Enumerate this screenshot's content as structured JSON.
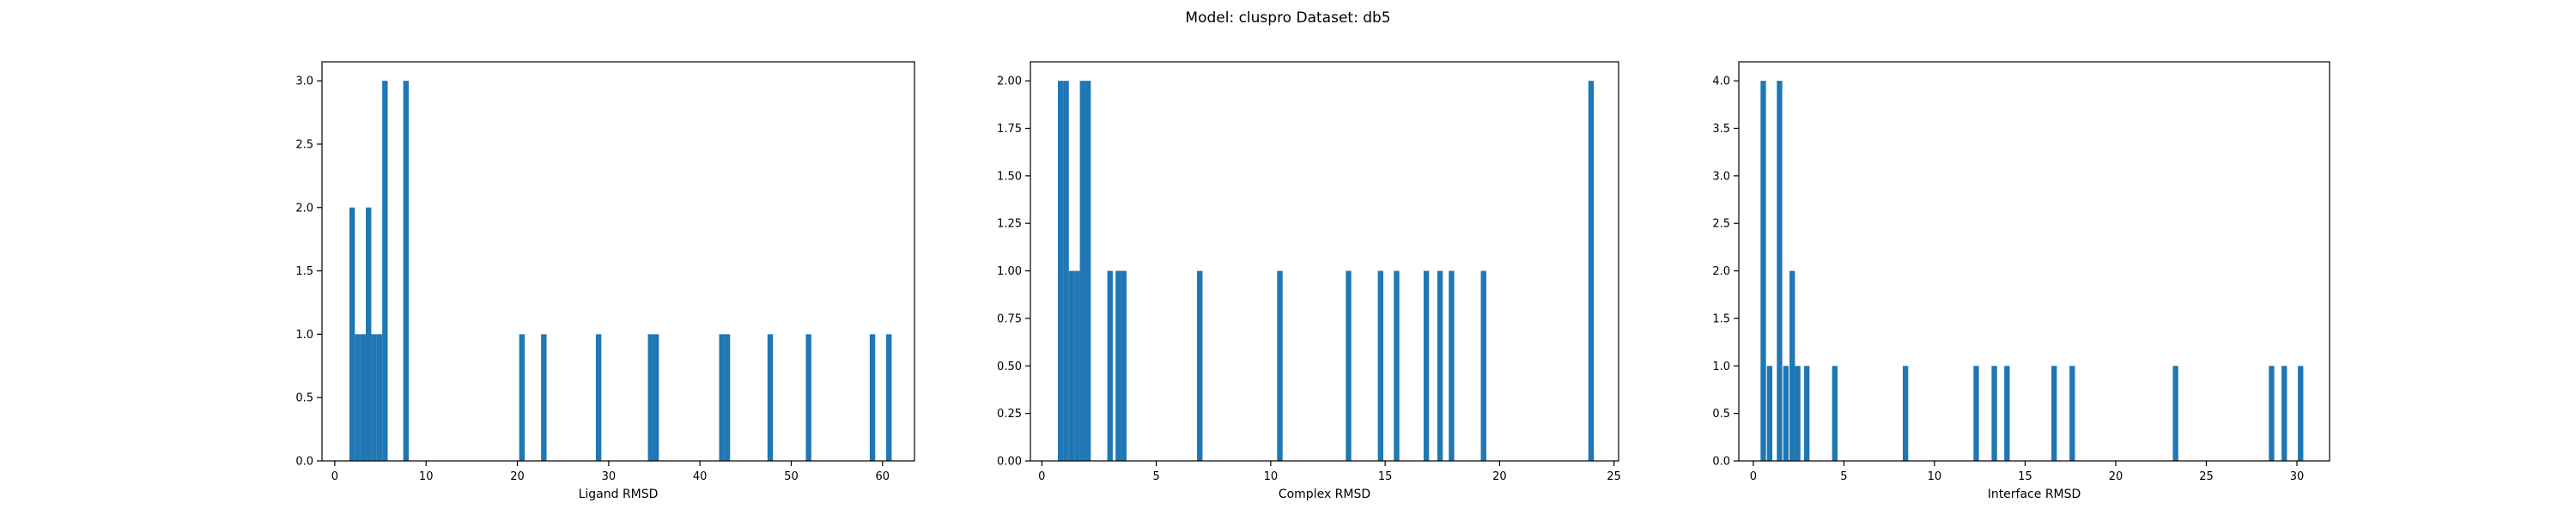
{
  "figure": {
    "suptitle": "Model: cluspro Dataset: db5"
  },
  "colors": {
    "bar": "#1f77b4",
    "axis": "#000000",
    "background": "#ffffff"
  },
  "chart_data": [
    {
      "type": "bar",
      "xlabel": "Ligand RMSD",
      "ylabel": "",
      "xlim": [
        -1.4,
        63.5
      ],
      "ylim": [
        0,
        3.15
      ],
      "grid": false,
      "bar_width": 0.6,
      "xticks": [
        0,
        10,
        20,
        30,
        40,
        50,
        60
      ],
      "xtick_labels": [
        "0",
        "10",
        "20",
        "30",
        "40",
        "50",
        "60"
      ],
      "yticks": [
        0,
        0.5,
        1.0,
        1.5,
        2.0,
        2.5,
        3.0
      ],
      "ytick_labels": [
        "0.0",
        "0.5",
        "1.0",
        "1.5",
        "2.0",
        "2.5",
        "3.0"
      ],
      "x": [
        1.9,
        2.5,
        3.1,
        3.7,
        4.3,
        4.9,
        5.5,
        7.8,
        20.5,
        22.9,
        28.9,
        34.6,
        35.2,
        42.4,
        43.0,
        47.7,
        51.9,
        58.9,
        60.7
      ],
      "values": [
        2,
        1,
        1,
        2,
        1,
        1,
        3,
        3,
        1,
        1,
        1,
        1,
        1,
        1,
        1,
        1,
        1,
        1,
        1
      ]
    },
    {
      "type": "bar",
      "xlabel": "Complex RMSD",
      "ylabel": "",
      "xlim": [
        -0.5,
        25.2
      ],
      "ylim": [
        0,
        2.1
      ],
      "grid": false,
      "bar_width": 0.24,
      "xticks": [
        0,
        5,
        10,
        15,
        20,
        25
      ],
      "xtick_labels": [
        "0",
        "5",
        "10",
        "15",
        "20",
        "25"
      ],
      "yticks": [
        0,
        0.25,
        0.5,
        0.75,
        1.0,
        1.25,
        1.5,
        1.75,
        2.0
      ],
      "ytick_labels": [
        "0.00",
        "0.25",
        "0.50",
        "0.75",
        "1.00",
        "1.25",
        "1.50",
        "1.75",
        "2.00"
      ],
      "x": [
        0.82,
        1.06,
        1.3,
        1.54,
        1.78,
        2.02,
        2.98,
        3.34,
        3.58,
        6.9,
        10.4,
        13.4,
        14.8,
        15.5,
        16.8,
        17.4,
        17.9,
        19.3,
        24.0
      ],
      "values": [
        2,
        2,
        1,
        1,
        2,
        2,
        1,
        1,
        1,
        1,
        1,
        1,
        1,
        1,
        1,
        1,
        1,
        1,
        2
      ]
    },
    {
      "type": "bar",
      "xlabel": "Interface RMSD",
      "ylabel": "",
      "xlim": [
        -0.8,
        31.8
      ],
      "ylim": [
        0,
        4.2
      ],
      "grid": false,
      "bar_width": 0.3,
      "xticks": [
        0,
        5,
        10,
        15,
        20,
        25,
        30
      ],
      "xtick_labels": [
        "0",
        "5",
        "10",
        "15",
        "20",
        "25",
        "30"
      ],
      "yticks": [
        0,
        0.5,
        1.0,
        1.5,
        2.0,
        2.5,
        3.0,
        3.5,
        4.0
      ],
      "ytick_labels": [
        "0.0",
        "0.5",
        "1.0",
        "1.5",
        "2.0",
        "2.5",
        "3.0",
        "3.5",
        "4.0"
      ],
      "x": [
        0.55,
        0.9,
        1.45,
        1.8,
        2.15,
        2.45,
        2.95,
        4.5,
        8.4,
        12.3,
        13.3,
        14.0,
        16.6,
        17.6,
        23.3,
        28.6,
        29.3,
        30.2
      ],
      "values": [
        4,
        1,
        4,
        1,
        2,
        1,
        1,
        1,
        1,
        1,
        1,
        1,
        1,
        1,
        1,
        1,
        1,
        1
      ]
    }
  ]
}
